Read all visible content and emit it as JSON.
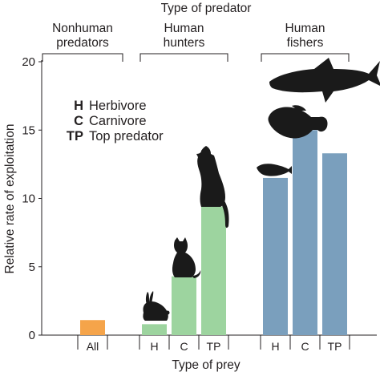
{
  "chart_data": {
    "type": "bar",
    "title": "Type of predator",
    "xlabel": "Type of prey",
    "ylabel": "Relative rate of exploitation",
    "ylim": [
      0,
      20
    ],
    "yticks": [
      0,
      5,
      10,
      15,
      20
    ],
    "grid": false,
    "groups": [
      {
        "label": "Nonhuman\npredators",
        "color": "#f5a44a",
        "bars": [
          {
            "category": "All",
            "value": 1.1
          }
        ]
      },
      {
        "label": "Human\nhunters",
        "color": "#9dd49f",
        "bars": [
          {
            "category": "H",
            "value": 0.8
          },
          {
            "category": "C",
            "value": 4.3
          },
          {
            "category": "TP",
            "value": 9.4
          }
        ]
      },
      {
        "label": "Human\nfishers",
        "color": "#7a9fbd",
        "bars": [
          {
            "category": "H",
            "value": 11.5
          },
          {
            "category": "C",
            "value": 15.0
          },
          {
            "category": "TP",
            "value": 13.3
          }
        ]
      }
    ],
    "legend": {
      "placement": "upper-left",
      "entries": [
        {
          "abbr": "H",
          "label": "Herbivore"
        },
        {
          "abbr": "C",
          "label": "Carnivore"
        },
        {
          "abbr": "TP",
          "label": "Top predator"
        }
      ]
    },
    "icons": [
      "rabbit-icon",
      "cat-icon",
      "wolf-icon",
      "fish-icon",
      "grouper-icon",
      "shark-icon"
    ]
  }
}
